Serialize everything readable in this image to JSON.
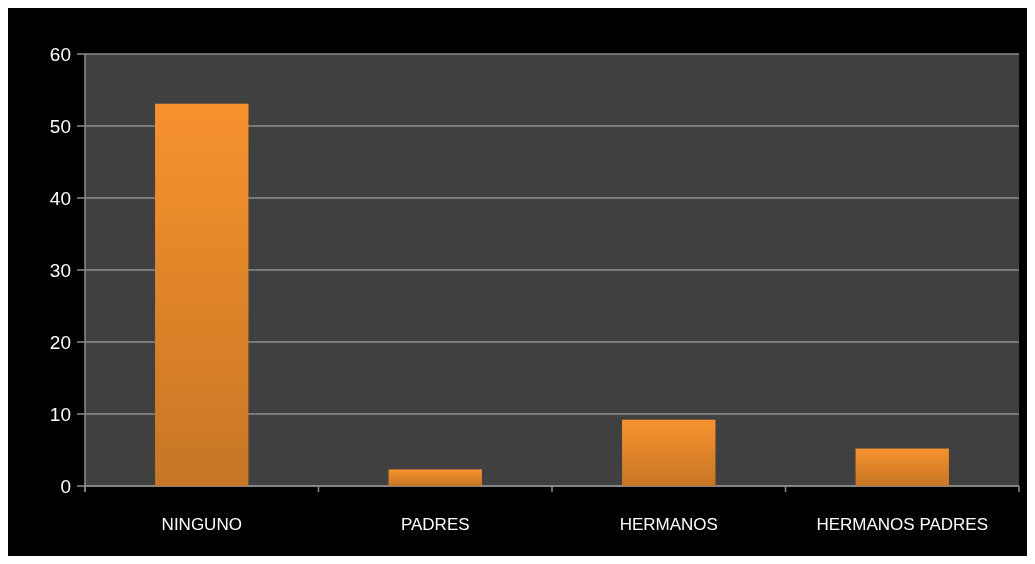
{
  "chart_data": {
    "type": "bar",
    "categories": [
      "NINGUNO",
      "PADRES",
      "HERMANOS",
      "HERMANOS PADRES"
    ],
    "values": [
      53.1,
      2.3,
      9.2,
      5.2
    ],
    "color": "#f7922e",
    "ylim": [
      0,
      60
    ],
    "yticks": [
      0,
      10,
      20,
      30,
      40,
      50,
      60
    ],
    "grid": "y"
  }
}
